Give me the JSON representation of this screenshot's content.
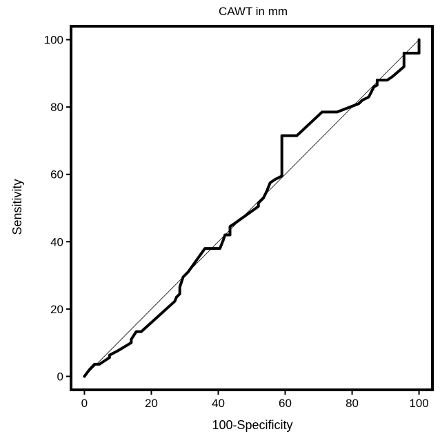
{
  "chart_data": {
    "type": "line",
    "title": "CAWT in mm",
    "xlabel": "100-Specificity",
    "ylabel": "Sensitivity",
    "xlim": [
      -4,
      104
    ],
    "ylim": [
      -4,
      104
    ],
    "x_ticks": [
      0,
      20,
      40,
      60,
      80,
      100
    ],
    "y_ticks": [
      0,
      20,
      40,
      60,
      80,
      100
    ],
    "grid": false,
    "legend": "none",
    "series": [
      {
        "style": "thick-black-step",
        "color": "#000000",
        "points": [
          [
            0,
            0
          ],
          [
            1.5,
            2
          ],
          [
            3,
            3.6
          ],
          [
            4.5,
            3.6
          ],
          [
            6,
            4.6
          ],
          [
            7.5,
            5.6
          ],
          [
            7.5,
            6.3
          ],
          [
            10,
            7.6
          ],
          [
            14,
            10
          ],
          [
            14,
            11
          ],
          [
            15.5,
            13.3
          ],
          [
            17,
            13.3
          ],
          [
            27,
            22.3
          ],
          [
            27.5,
            23.5
          ],
          [
            28.5,
            24.5
          ],
          [
            28.5,
            26.5
          ],
          [
            29.5,
            29.5
          ],
          [
            31,
            31
          ],
          [
            36,
            38
          ],
          [
            40.5,
            38
          ],
          [
            41.5,
            40.5
          ],
          [
            42,
            42
          ],
          [
            43.5,
            42
          ],
          [
            43.5,
            44.5
          ],
          [
            45,
            45.5
          ],
          [
            52,
            50.5
          ],
          [
            52,
            51.5
          ],
          [
            53.5,
            53
          ],
          [
            54.5,
            55
          ],
          [
            55.5,
            57.5
          ],
          [
            57,
            58.5
          ],
          [
            59,
            59.5
          ],
          [
            59,
            71.5
          ],
          [
            63.5,
            71.5
          ],
          [
            71,
            78.5
          ],
          [
            75.5,
            78.5
          ],
          [
            82,
            81
          ],
          [
            83,
            82
          ],
          [
            85,
            83
          ],
          [
            86,
            85
          ],
          [
            86.5,
            86
          ],
          [
            87.5,
            86.5
          ],
          [
            87.5,
            88
          ],
          [
            90.5,
            88
          ],
          [
            92,
            89
          ],
          [
            95.5,
            92
          ],
          [
            95.5,
            96
          ],
          [
            100,
            96
          ],
          [
            100,
            100
          ]
        ]
      },
      {
        "style": "thin-diagonal-reference",
        "color": "#000000",
        "points": [
          [
            0,
            0
          ],
          [
            100,
            100
          ]
        ]
      }
    ]
  }
}
